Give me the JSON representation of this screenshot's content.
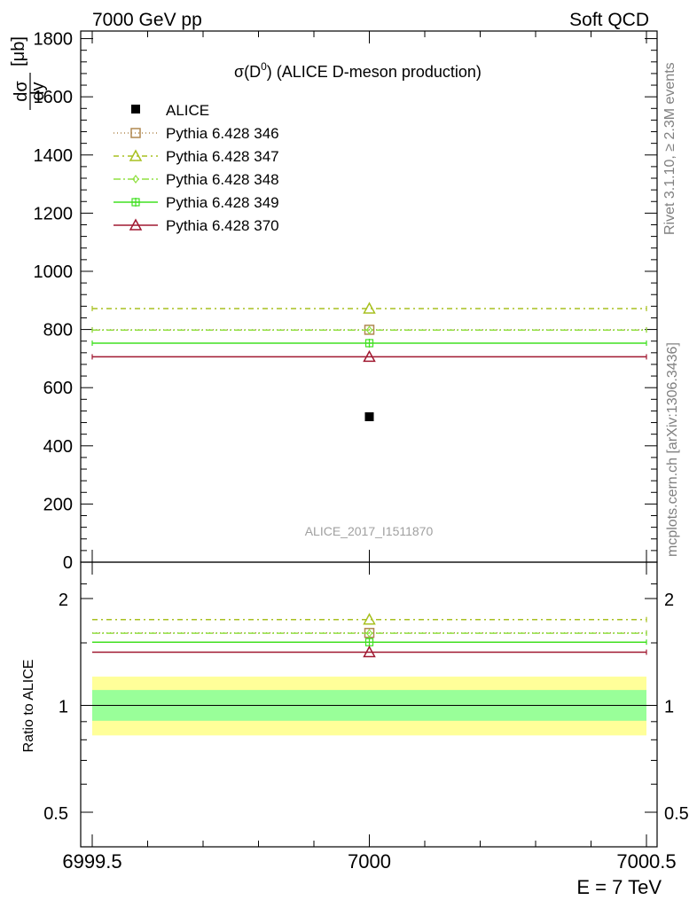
{
  "header": {
    "left": "7000 GeV pp",
    "right": "Soft QCD"
  },
  "side_labels": {
    "rivet": "Rivet 3.1.10, ≥ 2.3M events",
    "mcplots": "mcplots.cern.ch [arXiv:1306.3436]"
  },
  "chart_data": [
    {
      "type": "line",
      "title_main": "σ(D",
      "title_sup": "0",
      "title_rest": ") (ALICE D-meson production)",
      "ylabel_num": "dσ",
      "ylabel_den": "dy",
      "ylabel_unit": "[μb]",
      "watermark": "ALICE_2017_I1511870",
      "xlim": [
        6999.5,
        7000.5
      ],
      "ylim": [
        0,
        1820
      ],
      "yticks": [
        0,
        200,
        400,
        600,
        800,
        1000,
        1200,
        1400,
        1600,
        1800
      ],
      "data_point": {
        "name": "ALICE",
        "x": 7000,
        "y": 500,
        "color": "#000000"
      },
      "series": [
        {
          "name": "Pythia 6.428 346",
          "y": 799,
          "color": "#b08850",
          "marker": "square",
          "dash": "1,3"
        },
        {
          "name": "Pythia 6.428 347",
          "y": 872,
          "color": "#a8c020",
          "marker": "triangle",
          "dash": "6,4,2,4"
        },
        {
          "name": "Pythia 6.428 348",
          "y": 798,
          "color": "#90e040",
          "marker": "diamond",
          "dash": "8,3,2,3"
        },
        {
          "name": "Pythia 6.428 349",
          "y": 753,
          "color": "#40e020",
          "marker": "cross",
          "dash": ""
        },
        {
          "name": "Pythia 6.428 370",
          "y": 706,
          "color": "#a01830",
          "marker": "triangle",
          "dash": ""
        }
      ]
    },
    {
      "type": "line",
      "ylabel": "Ratio to ALICE",
      "xlabel": "E = 7 TeV",
      "ylim": [
        0.42,
        2.3
      ],
      "yticks": [
        0.5,
        1,
        2
      ],
      "ytick_labels": [
        "0.5",
        "1",
        "2"
      ],
      "xticks": [
        6999.5,
        7000,
        7000.5
      ],
      "xtick_labels": [
        "6999.5",
        "7000",
        "7000.5"
      ],
      "bands": [
        {
          "name": "outer",
          "low": 0.823,
          "high": 1.205,
          "color": "#ffff99"
        },
        {
          "name": "inner",
          "low": 0.905,
          "high": 1.105,
          "color": "#99ff99"
        }
      ],
      "series": [
        {
          "name": "Pythia 6.428 346",
          "y": 1.6
        },
        {
          "name": "Pythia 6.428 347",
          "y": 1.745
        },
        {
          "name": "Pythia 6.428 348",
          "y": 1.597
        },
        {
          "name": "Pythia 6.428 349",
          "y": 1.507
        },
        {
          "name": "Pythia 6.428 370",
          "y": 1.412
        }
      ]
    }
  ]
}
